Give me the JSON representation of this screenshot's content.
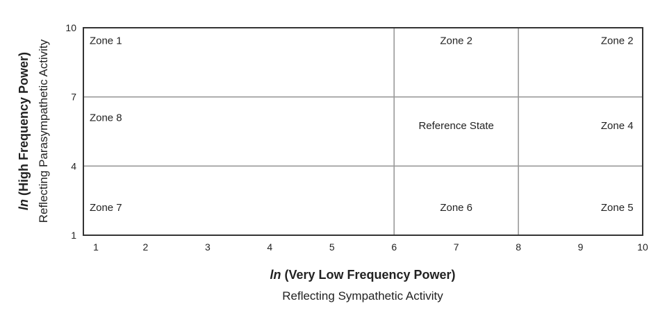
{
  "chart_data": {
    "type": "table",
    "title": "",
    "xlim": [
      1,
      10
    ],
    "ylim": [
      1,
      10
    ],
    "x_ticks": [
      1,
      2,
      3,
      4,
      5,
      6,
      7,
      8,
      9,
      10
    ],
    "y_ticks": [
      1,
      4,
      7,
      10
    ],
    "x_divisions": [
      6,
      8
    ],
    "y_divisions": [
      4,
      7
    ],
    "xlabel": {
      "italic": "ln",
      "main": " (Very Low Frequency Power)",
      "sub": "Reflecting Sympathetic Activity"
    },
    "ylabel": {
      "italic": "ln",
      "main": " (High Frequency Power)",
      "sub": "Reflecting Parasympathetic Activity"
    },
    "zones": [
      {
        "label": "Zone 1",
        "x": 1.1,
        "y": 9.45,
        "anchor": "start"
      },
      {
        "label": "Zone 2",
        "x": 7.0,
        "y": 9.45,
        "anchor": "middle"
      },
      {
        "label": "Zone 2",
        "x": 9.85,
        "y": 9.45,
        "anchor": "end"
      },
      {
        "label": "Zone 8",
        "x": 1.1,
        "y": 6.1,
        "anchor": "start"
      },
      {
        "label": "Reference State",
        "x": 7.0,
        "y": 5.75,
        "anchor": "middle"
      },
      {
        "label": "Zone 4",
        "x": 9.85,
        "y": 5.75,
        "anchor": "end"
      },
      {
        "label": "Zone 7",
        "x": 1.1,
        "y": 2.2,
        "anchor": "start"
      },
      {
        "label": "Zone 6",
        "x": 7.0,
        "y": 2.2,
        "anchor": "middle"
      },
      {
        "label": "Zone 5",
        "x": 9.85,
        "y": 2.2,
        "anchor": "end"
      }
    ],
    "colors": {
      "frame": "#333333",
      "divider": "#999999",
      "text": "#222222"
    }
  }
}
